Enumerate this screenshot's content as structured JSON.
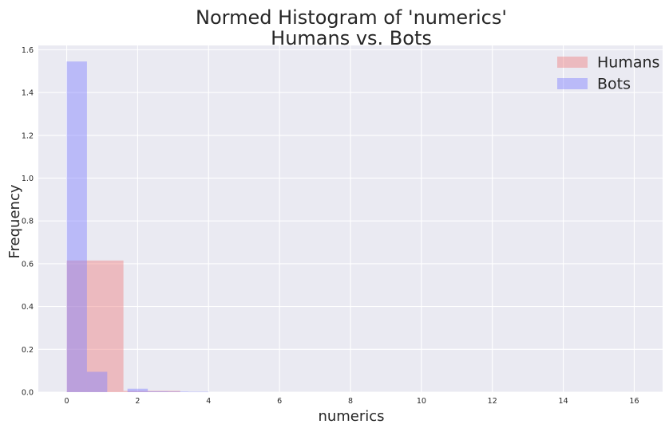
{
  "chart_data": {
    "type": "bar",
    "title_lines": [
      "Normed Histogram of 'numerics'",
      "Humans vs. Bots"
    ],
    "xlabel": "numerics",
    "ylabel": "Frequency",
    "xlim": [
      -0.8,
      16.8
    ],
    "ylim": [
      0,
      1.62
    ],
    "xticks": [
      0,
      2,
      4,
      6,
      8,
      10,
      12,
      14,
      16
    ],
    "yticks": [
      0.0,
      0.2,
      0.4,
      0.6,
      0.8,
      1.0,
      1.2,
      1.4,
      1.6
    ],
    "grid": true,
    "legend": {
      "placement": "top-right"
    },
    "series": [
      {
        "name": "Humans",
        "color": "#f08080",
        "opacity": 0.45,
        "bins": [
          {
            "x0": 0.0,
            "x1": 1.6,
            "value": 0.615
          },
          {
            "x0": 1.6,
            "x1": 3.2,
            "value": 0.006
          }
        ]
      },
      {
        "name": "Bots",
        "color": "#8080ff",
        "opacity": 0.45,
        "bins": [
          {
            "x0": 0.0,
            "x1": 0.571,
            "value": 1.545
          },
          {
            "x0": 0.571,
            "x1": 1.143,
            "value": 0.095
          },
          {
            "x0": 1.143,
            "x1": 1.714,
            "value": 0.0
          },
          {
            "x0": 1.714,
            "x1": 2.286,
            "value": 0.016
          },
          {
            "x0": 2.286,
            "x1": 2.857,
            "value": 0.004
          },
          {
            "x0": 2.857,
            "x1": 3.429,
            "value": 0.003
          },
          {
            "x0": 3.429,
            "x1": 4.0,
            "value": 0.002
          }
        ]
      }
    ]
  },
  "colors": {
    "plot_background": "#eaeaf2",
    "grid": "#ffffff",
    "text": "#262626"
  }
}
